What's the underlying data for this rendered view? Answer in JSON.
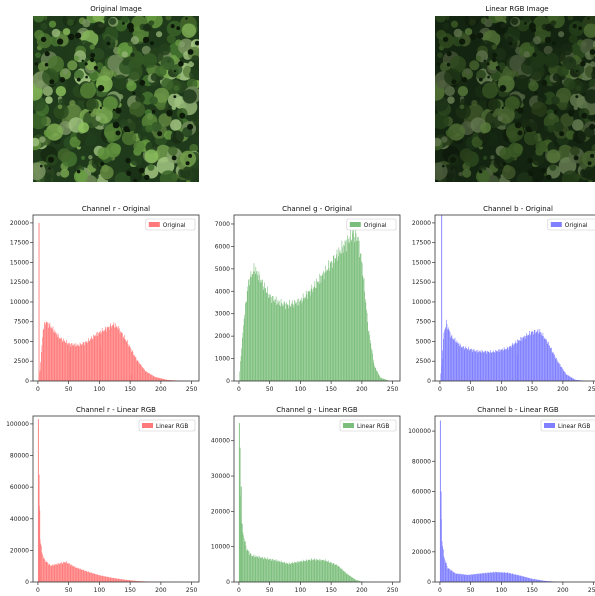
{
  "images": [
    {
      "title": "Original Image",
      "brightness": 1.0
    },
    {
      "title": "Linear RGB Image",
      "brightness": 0.62
    }
  ],
  "colors": {
    "r": "#ff7a7a",
    "g": "#7cbf7c",
    "b": "#7f7fff",
    "axis": "#333333",
    "forest_dark": "#1f3a1a",
    "forest_mid": "#3f6b2c",
    "forest_light": "#7fae54"
  },
  "chart_data": [
    {
      "type": "bar",
      "title": "Channel r - Original",
      "legend": "Original",
      "color": "r",
      "xlim": [
        -8,
        262
      ],
      "ylim": [
        0,
        21000
      ],
      "xticks": [
        0,
        50,
        100,
        150,
        200,
        250
      ],
      "yticks": [
        0,
        2500,
        5000,
        7500,
        10000,
        12500,
        15000,
        17500,
        20000
      ],
      "ytick_labels": [
        "0",
        "2500",
        "5000",
        "7500",
        "10000",
        "12500",
        "15000",
        "17500",
        "20000"
      ],
      "profile": [
        [
          0,
          0
        ],
        [
          3,
          1500
        ],
        [
          8,
          7000
        ],
        [
          12,
          8000
        ],
        [
          20,
          7400
        ],
        [
          35,
          5800
        ],
        [
          50,
          5000
        ],
        [
          65,
          4800
        ],
        [
          80,
          5300
        ],
        [
          95,
          6300
        ],
        [
          110,
          7000
        ],
        [
          122,
          7600
        ],
        [
          130,
          7200
        ],
        [
          145,
          5200
        ],
        [
          160,
          2900
        ],
        [
          175,
          1300
        ],
        [
          190,
          550
        ],
        [
          210,
          150
        ],
        [
          230,
          40
        ],
        [
          255,
          0
        ]
      ],
      "spikes": [
        [
          1,
          20000
        ],
        [
          51,
          3600
        ],
        [
          101,
          4300
        ],
        [
          151,
          800
        ]
      ]
    },
    {
      "type": "bar",
      "title": "Channel g - Original",
      "legend": "Original",
      "color": "g",
      "xlim": [
        -8,
        262
      ],
      "ylim": [
        0,
        7400
      ],
      "xticks": [
        0,
        50,
        100,
        150,
        200,
        250
      ],
      "yticks": [
        0,
        1000,
        2000,
        3000,
        4000,
        5000,
        6000,
        7000
      ],
      "ytick_labels": [
        "0",
        "1000",
        "2000",
        "3000",
        "4000",
        "5000",
        "6000",
        "7000"
      ],
      "profile": [
        [
          0,
          0
        ],
        [
          2,
          900
        ],
        [
          8,
          3000
        ],
        [
          15,
          4700
        ],
        [
          25,
          5350
        ],
        [
          35,
          4800
        ],
        [
          50,
          4000
        ],
        [
          65,
          3700
        ],
        [
          80,
          3600
        ],
        [
          100,
          3800
        ],
        [
          120,
          4400
        ],
        [
          140,
          5200
        ],
        [
          160,
          6000
        ],
        [
          175,
          6600
        ],
        [
          185,
          7000
        ],
        [
          193,
          6800
        ],
        [
          200,
          5500
        ],
        [
          210,
          2500
        ],
        [
          220,
          700
        ],
        [
          230,
          150
        ],
        [
          245,
          0
        ]
      ],
      "spikes": []
    },
    {
      "type": "bar",
      "title": "Channel b - Original",
      "legend": "Original",
      "color": "b",
      "xlim": [
        -8,
        262
      ],
      "ylim": [
        0,
        21000
      ],
      "xticks": [
        0,
        50,
        100,
        150,
        200,
        250
      ],
      "yticks": [
        0,
        2500,
        5000,
        7500,
        10000,
        12500,
        15000,
        17500,
        20000
      ],
      "ytick_labels": [
        "0",
        "2500",
        "5000",
        "7500",
        "10000",
        "12500",
        "15000",
        "17500",
        "20000"
      ],
      "profile": [
        [
          0,
          0
        ],
        [
          2,
          2000
        ],
        [
          6,
          6500
        ],
        [
          10,
          7800
        ],
        [
          18,
          6000
        ],
        [
          35,
          4600
        ],
        [
          60,
          4000
        ],
        [
          85,
          3900
        ],
        [
          110,
          4400
        ],
        [
          130,
          5600
        ],
        [
          150,
          6600
        ],
        [
          162,
          6700
        ],
        [
          175,
          5200
        ],
        [
          190,
          2800
        ],
        [
          205,
          900
        ],
        [
          220,
          150
        ],
        [
          240,
          0
        ]
      ],
      "spikes": [
        [
          2,
          21000
        ],
        [
          125,
          3300
        ]
      ]
    },
    {
      "type": "bar",
      "title": "Channel r - Linear RGB",
      "legend": "Linear RGB",
      "color": "r",
      "xlim": [
        -8,
        262
      ],
      "ylim": [
        0,
        105000
      ],
      "xticks": [
        0,
        50,
        100,
        150,
        200,
        250
      ],
      "yticks": [
        0,
        20000,
        40000,
        60000,
        80000,
        100000
      ],
      "ytick_labels": [
        "0",
        "20000",
        "40000",
        "60000",
        "80000",
        "100000"
      ],
      "profile": [
        [
          0,
          0
        ],
        [
          1,
          68000
        ],
        [
          3,
          30000
        ],
        [
          6,
          20000
        ],
        [
          10,
          15000
        ],
        [
          20,
          11000
        ],
        [
          30,
          12000
        ],
        [
          45,
          13500
        ],
        [
          60,
          10000
        ],
        [
          80,
          7000
        ],
        [
          100,
          4500
        ],
        [
          120,
          2800
        ],
        [
          140,
          1600
        ],
        [
          160,
          700
        ],
        [
          180,
          250
        ],
        [
          200,
          80
        ],
        [
          230,
          0
        ]
      ],
      "spikes": [
        [
          0,
          103000
        ],
        [
          1,
          68000
        ],
        [
          2,
          45000
        ]
      ]
    },
    {
      "type": "bar",
      "title": "Channel g - Linear RGB",
      "legend": "Linear RGB",
      "color": "g",
      "xlim": [
        -8,
        262
      ],
      "ylim": [
        0,
        47000
      ],
      "xticks": [
        0,
        50,
        100,
        150,
        200,
        250
      ],
      "yticks": [
        0,
        10000,
        20000,
        30000,
        40000
      ],
      "ytick_labels": [
        "0",
        "10000",
        "20000",
        "30000",
        "40000"
      ],
      "profile": [
        [
          0,
          0
        ],
        [
          1,
          30000
        ],
        [
          3,
          20000
        ],
        [
          6,
          15000
        ],
        [
          12,
          10000
        ],
        [
          20,
          8000
        ],
        [
          40,
          7200
        ],
        [
          60,
          6500
        ],
        [
          80,
          5500
        ],
        [
          100,
          6200
        ],
        [
          120,
          6800
        ],
        [
          140,
          6500
        ],
        [
          160,
          5000
        ],
        [
          175,
          2500
        ],
        [
          190,
          600
        ],
        [
          200,
          100
        ],
        [
          220,
          0
        ]
      ],
      "spikes": [
        [
          0,
          45000
        ],
        [
          1,
          38000
        ],
        [
          3,
          27000
        ]
      ]
    },
    {
      "type": "bar",
      "title": "Channel b - Linear RGB",
      "legend": "Linear RGB",
      "color": "b",
      "xlim": [
        -8,
        262
      ],
      "ylim": [
        0,
        110000
      ],
      "xticks": [
        0,
        50,
        100,
        150,
        200,
        250
      ],
      "yticks": [
        0,
        20000,
        40000,
        60000,
        80000,
        100000
      ],
      "ytick_labels": [
        "0",
        "20000",
        "40000",
        "60000",
        "80000",
        "100000"
      ],
      "profile": [
        [
          0,
          0
        ],
        [
          1,
          55000
        ],
        [
          3,
          30000
        ],
        [
          6,
          18000
        ],
        [
          12,
          10000
        ],
        [
          25,
          6000
        ],
        [
          45,
          5000
        ],
        [
          70,
          6200
        ],
        [
          90,
          7000
        ],
        [
          110,
          6500
        ],
        [
          130,
          4500
        ],
        [
          150,
          2200
        ],
        [
          170,
          800
        ],
        [
          190,
          200
        ],
        [
          210,
          0
        ]
      ],
      "spikes": [
        [
          0,
          107000
        ],
        [
          1,
          60000
        ]
      ]
    }
  ]
}
